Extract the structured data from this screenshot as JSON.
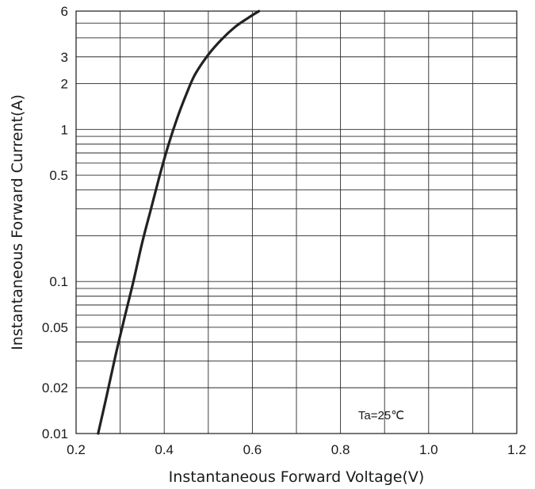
{
  "chart_data": {
    "type": "line",
    "title": "",
    "xlabel": "Instantaneous Forward Voltage(V)",
    "ylabel": "Instantaneous Forward Current(A)",
    "xscale": "linear",
    "yscale": "log",
    "xlim": [
      0.2,
      1.2
    ],
    "ylim": [
      0.01,
      6
    ],
    "x_ticks": [
      0.2,
      0.4,
      0.6,
      0.8,
      1.0,
      1.2
    ],
    "x_tick_labels": [
      "0.2",
      "0.4",
      "0.6",
      "0.8",
      "1.0",
      "1.2"
    ],
    "x_minor_gridlines": [
      0.3,
      0.5,
      0.7,
      0.9,
      1.1
    ],
    "y_ticks": [
      0.01,
      0.02,
      0.05,
      0.1,
      0.5,
      1,
      2,
      3,
      6
    ],
    "y_tick_labels": [
      "0.01",
      "0.02",
      "0.05",
      "0.1",
      "0.5",
      "1",
      "2",
      "3",
      "6"
    ],
    "y_gridlines": [
      0.01,
      0.02,
      0.03,
      0.04,
      0.05,
      0.06,
      0.07,
      0.08,
      0.09,
      0.1,
      0.2,
      0.3,
      0.4,
      0.5,
      0.6,
      0.7,
      0.8,
      0.9,
      1,
      2,
      3,
      4,
      5,
      6
    ],
    "grid": true,
    "annotation": "Ta=25℃",
    "series": [
      {
        "color": "#222222",
        "x": [
          0.25,
          0.27,
          0.29,
          0.31,
          0.33,
          0.35,
          0.37,
          0.39,
          0.41,
          0.43,
          0.45,
          0.47,
          0.5,
          0.53,
          0.56,
          0.59,
          0.615
        ],
        "y": [
          0.01,
          0.018,
          0.033,
          0.058,
          0.1,
          0.18,
          0.3,
          0.5,
          0.8,
          1.2,
          1.7,
          2.3,
          3.1,
          3.9,
          4.7,
          5.4,
          6.0
        ]
      }
    ]
  }
}
